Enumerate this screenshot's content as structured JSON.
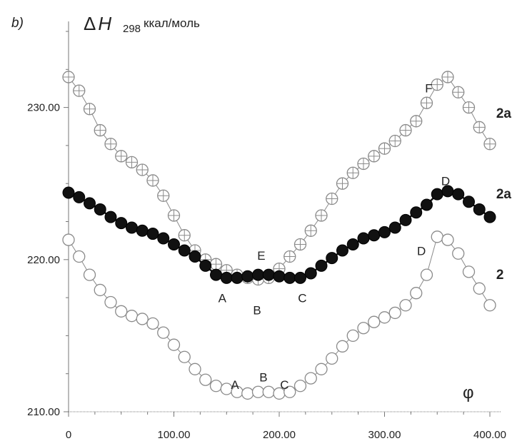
{
  "chart_data": {
    "type": "scatter",
    "panel_label": "b)",
    "ylabel": {
      "delta": "Δ",
      "symbol": "H",
      "subscript": "298",
      "unit": "ккал/моль"
    },
    "xlabel": "φ",
    "xlim": [
      0,
      400
    ],
    "ylim": [
      210,
      235
    ],
    "x_ticks": [
      "0",
      "100.00",
      "200.00",
      "300.00",
      "400.00"
    ],
    "x_tick_values": [
      0,
      100,
      200,
      300,
      400
    ],
    "y_ticks": [
      "210.00",
      "220.00",
      "230.00"
    ],
    "y_tick_values": [
      210,
      220,
      230
    ],
    "grid": false,
    "series": [
      {
        "name": "2a",
        "marker": "crossed-circle",
        "color": "#8a8a8a",
        "x": [
          0,
          10,
          20,
          30,
          40,
          50,
          60,
          70,
          80,
          90,
          100,
          110,
          120,
          130,
          140,
          150,
          160,
          170,
          180,
          190,
          200,
          210,
          220,
          230,
          240,
          250,
          260,
          270,
          280,
          290,
          300,
          310,
          320,
          330,
          340,
          350,
          360,
          370,
          380,
          390,
          400
        ],
        "y": [
          232.0,
          231.1,
          229.9,
          228.5,
          227.6,
          226.8,
          226.4,
          225.9,
          225.2,
          224.2,
          222.9,
          221.6,
          220.6,
          220.0,
          219.7,
          219.3,
          219.0,
          218.8,
          218.7,
          218.8,
          219.4,
          220.2,
          221.0,
          221.9,
          222.9,
          224.0,
          225.0,
          225.7,
          226.3,
          226.8,
          227.3,
          227.8,
          228.5,
          229.1,
          230.3,
          231.5,
          232.0,
          231.0,
          230.0,
          228.7,
          227.6
        ]
      },
      {
        "name": "2a",
        "marker": "filled-circle",
        "color": "#111111",
        "x": [
          0,
          10,
          20,
          30,
          40,
          50,
          60,
          70,
          80,
          90,
          100,
          110,
          120,
          130,
          140,
          150,
          160,
          170,
          180,
          190,
          200,
          210,
          220,
          230,
          240,
          250,
          260,
          270,
          280,
          290,
          300,
          310,
          320,
          330,
          340,
          350,
          360,
          370,
          380,
          390,
          400
        ],
        "y": [
          224.4,
          224.1,
          223.7,
          223.3,
          222.8,
          222.4,
          222.1,
          221.9,
          221.7,
          221.4,
          221.0,
          220.6,
          220.2,
          219.6,
          219.0,
          218.8,
          218.8,
          218.9,
          219.0,
          219.0,
          218.9,
          218.8,
          218.8,
          219.1,
          219.6,
          220.1,
          220.6,
          221.0,
          221.4,
          221.6,
          221.8,
          222.1,
          222.6,
          223.1,
          223.6,
          224.3,
          224.5,
          224.3,
          223.8,
          223.3,
          222.8
        ]
      },
      {
        "name": "2",
        "marker": "open-circle",
        "color": "#8a8a8a",
        "x": [
          0,
          10,
          20,
          30,
          40,
          50,
          60,
          70,
          80,
          90,
          100,
          110,
          120,
          130,
          140,
          150,
          160,
          170,
          180,
          190,
          200,
          210,
          220,
          230,
          240,
          250,
          260,
          270,
          280,
          290,
          300,
          310,
          320,
          330,
          340,
          350,
          360,
          370,
          380,
          390,
          400
        ],
        "y": [
          221.3,
          220.2,
          219.0,
          218.0,
          217.2,
          216.6,
          216.3,
          216.1,
          215.8,
          215.2,
          214.4,
          213.6,
          212.8,
          212.1,
          211.7,
          211.5,
          211.3,
          211.2,
          211.3,
          211.3,
          211.2,
          211.3,
          211.7,
          212.2,
          212.8,
          213.5,
          214.3,
          215.0,
          215.5,
          215.9,
          216.2,
          216.5,
          217.0,
          217.8,
          219.0,
          221.5,
          221.3,
          220.4,
          219.2,
          218.1,
          217.0
        ]
      }
    ],
    "series_labels": [
      {
        "text": "2a",
        "x": 406,
        "y": 229.6
      },
      {
        "text": "2a",
        "x": 406,
        "y": 224.3
      },
      {
        "text": "2",
        "x": 406,
        "y": 219.0
      }
    ],
    "annotations": [
      {
        "text": "F",
        "x": 342,
        "y": 231.0
      },
      {
        "text": "E",
        "x": 183,
        "y": 220.0
      },
      {
        "text": "D",
        "x": 358,
        "y": 224.9
      },
      {
        "text": "A",
        "x": 146,
        "y": 217.2
      },
      {
        "text": "B",
        "x": 179,
        "y": 216.4
      },
      {
        "text": "C",
        "x": 222,
        "y": 217.2
      },
      {
        "text": "D",
        "x": 335,
        "y": 220.3
      },
      {
        "text": "A",
        "x": 158,
        "y": 211.5
      },
      {
        "text": "B",
        "x": 185,
        "y": 212.0
      },
      {
        "text": "C",
        "x": 205,
        "y": 211.5
      }
    ]
  }
}
